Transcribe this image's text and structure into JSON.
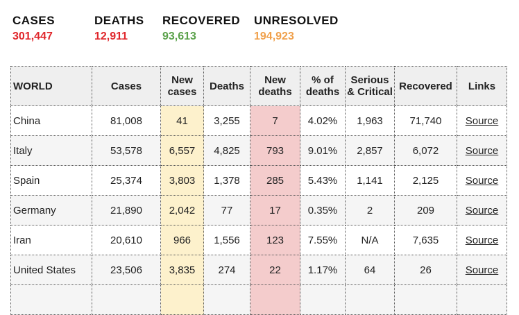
{
  "summary": [
    {
      "label": "CASES",
      "value": "301,447",
      "color": "#e0262b"
    },
    {
      "label": "DEATHS",
      "value": "12,911",
      "color": "#e0262b"
    },
    {
      "label": "RECOVERED",
      "value": "93,613",
      "color": "#5aa14a"
    },
    {
      "label": "UNRESOLVED",
      "value": "194,923",
      "color": "#f0a04b"
    }
  ],
  "headers": [
    "WORLD",
    "Cases",
    "New cases",
    "Deaths",
    "New deaths",
    "% of deaths",
    "Serious & Critical",
    "Recovered",
    "Links"
  ],
  "rows": [
    [
      "China",
      "81,008",
      "41",
      "3,255",
      "7",
      "4.02%",
      "1,963",
      "71,740",
      "Source"
    ],
    [
      "Italy",
      "53,578",
      "6,557",
      "4,825",
      "793",
      "9.01%",
      "2,857",
      "6,072",
      "Source"
    ],
    [
      "Spain",
      "25,374",
      "3,803",
      "1,378",
      "285",
      "5.43%",
      "1,141",
      "2,125",
      "Source"
    ],
    [
      "Germany",
      "21,890",
      "2,042",
      "77",
      "17",
      "0.35%",
      "2",
      "209",
      "Source"
    ],
    [
      "Iran",
      "20,610",
      "966",
      "1,556",
      "123",
      "7.55%",
      "N/A",
      "7,635",
      "Source"
    ],
    [
      "United States",
      "23,506",
      "3,835",
      "274",
      "22",
      "1.17%",
      "64",
      "26",
      "Source"
    ]
  ]
}
